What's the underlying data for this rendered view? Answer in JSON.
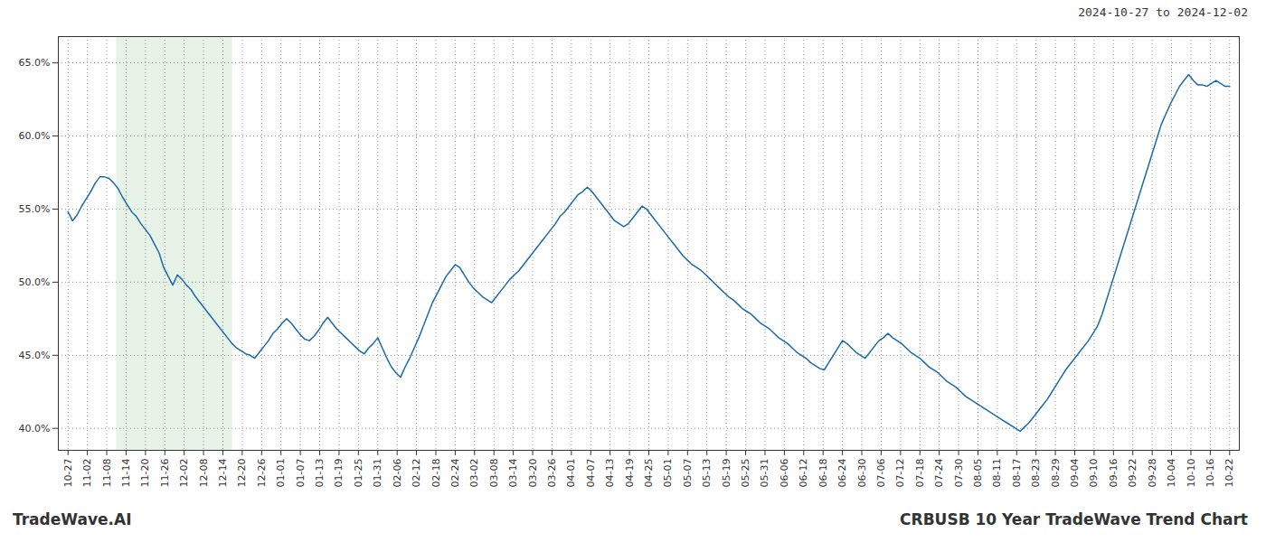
{
  "chart_data": {
    "type": "line",
    "subtitle": "2024-10-27 to 2024-12-02",
    "annotations": [
      "TradeWave.AI",
      "CRBUSB 10 Year TradeWave Trend Chart"
    ],
    "color": "#1a6aab",
    "grid": true,
    "xlim": [
      -0.5,
      60.5
    ],
    "xticks": [
      {
        "value": 0,
        "label": "10-27"
      },
      {
        "value": 1,
        "label": "11-02"
      },
      {
        "value": 2,
        "label": "11-08"
      },
      {
        "value": 3,
        "label": "11-14"
      },
      {
        "value": 4,
        "label": "11-20"
      },
      {
        "value": 5,
        "label": "11-26"
      },
      {
        "value": 6,
        "label": "12-02"
      },
      {
        "value": 7,
        "label": "12-08"
      },
      {
        "value": 8,
        "label": "12-14"
      },
      {
        "value": 9,
        "label": "12-20"
      },
      {
        "value": 10,
        "label": "12-26"
      },
      {
        "value": 11,
        "label": "01-01"
      },
      {
        "value": 12,
        "label": "01-07"
      },
      {
        "value": 13,
        "label": "01-13"
      },
      {
        "value": 14,
        "label": "01-19"
      },
      {
        "value": 15,
        "label": "01-25"
      },
      {
        "value": 16,
        "label": "01-31"
      },
      {
        "value": 17,
        "label": "02-06"
      },
      {
        "value": 18,
        "label": "02-12"
      },
      {
        "value": 19,
        "label": "02-18"
      },
      {
        "value": 20,
        "label": "02-24"
      },
      {
        "value": 21,
        "label": "03-02"
      },
      {
        "value": 22,
        "label": "03-08"
      },
      {
        "value": 23,
        "label": "03-14"
      },
      {
        "value": 24,
        "label": "03-20"
      },
      {
        "value": 25,
        "label": "03-26"
      },
      {
        "value": 26,
        "label": "04-01"
      },
      {
        "value": 27,
        "label": "04-07"
      },
      {
        "value": 28,
        "label": "04-13"
      },
      {
        "value": 29,
        "label": "04-19"
      },
      {
        "value": 30,
        "label": "04-25"
      },
      {
        "value": 31,
        "label": "05-01"
      },
      {
        "value": 32,
        "label": "05-07"
      },
      {
        "value": 33,
        "label": "05-13"
      },
      {
        "value": 34,
        "label": "05-19"
      },
      {
        "value": 35,
        "label": "05-25"
      },
      {
        "value": 36,
        "label": "05-31"
      },
      {
        "value": 37,
        "label": "06-06"
      },
      {
        "value": 38,
        "label": "06-12"
      },
      {
        "value": 39,
        "label": "06-18"
      },
      {
        "value": 40,
        "label": "06-24"
      },
      {
        "value": 41,
        "label": "06-30"
      },
      {
        "value": 42,
        "label": "07-06"
      },
      {
        "value": 43,
        "label": "07-12"
      },
      {
        "value": 44,
        "label": "07-18"
      },
      {
        "value": 45,
        "label": "07-24"
      },
      {
        "value": 46,
        "label": "07-30"
      },
      {
        "value": 47,
        "label": "08-05"
      },
      {
        "value": 48,
        "label": "08-11"
      },
      {
        "value": 49,
        "label": "08-17"
      },
      {
        "value": 50,
        "label": "08-23"
      },
      {
        "value": 51,
        "label": "08-29"
      },
      {
        "value": 52,
        "label": "09-04"
      },
      {
        "value": 53,
        "label": "09-10"
      },
      {
        "value": 54,
        "label": "09-16"
      },
      {
        "value": 55,
        "label": "09-22"
      },
      {
        "value": 56,
        "label": "09-28"
      },
      {
        "value": 57,
        "label": "10-04"
      },
      {
        "value": 58,
        "label": "10-10"
      },
      {
        "value": 59,
        "label": "10-16"
      },
      {
        "value": 60,
        "label": "10-22"
      }
    ],
    "ylim": [
      0.385,
      0.668
    ],
    "yticks": [
      {
        "value": 0.4,
        "label": "40.0%"
      },
      {
        "value": 0.45,
        "label": "45.0%"
      },
      {
        "value": 0.5,
        "label": "50.0%"
      },
      {
        "value": 0.55,
        "label": "55.0%"
      },
      {
        "value": 0.6,
        "label": "60.0%"
      },
      {
        "value": 0.65,
        "label": "65.0%"
      }
    ],
    "shade": {
      "x": [
        2.5,
        8.5
      ],
      "color": "#d6ead6"
    },
    "values": [
      0.548,
      0.542,
      0.546,
      0.552,
      0.557,
      0.562,
      0.568,
      0.572,
      0.572,
      0.571,
      0.568,
      0.564,
      0.558,
      0.553,
      0.548,
      0.545,
      0.54,
      0.536,
      0.532,
      0.526,
      0.52,
      0.51,
      0.504,
      0.498,
      0.505,
      0.502,
      0.498,
      0.495,
      0.49,
      0.486,
      0.482,
      0.478,
      0.474,
      0.47,
      0.466,
      0.462,
      0.458,
      0.455,
      0.453,
      0.451,
      0.45,
      0.448,
      0.452,
      0.456,
      0.46,
      0.465,
      0.468,
      0.472,
      0.475,
      0.472,
      0.468,
      0.464,
      0.461,
      0.46,
      0.463,
      0.467,
      0.472,
      0.476,
      0.472,
      0.468,
      0.465,
      0.462,
      0.459,
      0.456,
      0.453,
      0.451,
      0.455,
      0.458,
      0.462,
      0.455,
      0.448,
      0.442,
      0.438,
      0.435,
      0.442,
      0.448,
      0.455,
      0.462,
      0.47,
      0.478,
      0.486,
      0.492,
      0.498,
      0.504,
      0.508,
      0.512,
      0.51,
      0.505,
      0.5,
      0.496,
      0.493,
      0.49,
      0.488,
      0.486,
      0.49,
      0.494,
      0.498,
      0.502,
      0.505,
      0.508,
      0.512,
      0.516,
      0.52,
      0.524,
      0.528,
      0.532,
      0.536,
      0.54,
      0.545,
      0.548,
      0.552,
      0.556,
      0.56,
      0.562,
      0.565,
      0.562,
      0.558,
      0.554,
      0.55,
      0.546,
      0.542,
      0.54,
      0.538,
      0.54,
      0.544,
      0.548,
      0.552,
      0.55,
      0.546,
      0.542,
      0.538,
      0.534,
      0.53,
      0.526,
      0.522,
      0.518,
      0.515,
      0.512,
      0.51,
      0.508,
      0.505,
      0.502,
      0.499,
      0.496,
      0.493,
      0.49,
      0.488,
      0.485,
      0.482,
      0.48,
      0.478,
      0.475,
      0.472,
      0.47,
      0.468,
      0.465,
      0.462,
      0.46,
      0.458,
      0.455,
      0.452,
      0.45,
      0.448,
      0.445,
      0.443,
      0.441,
      0.44,
      0.445,
      0.45,
      0.455,
      0.46,
      0.458,
      0.455,
      0.452,
      0.45,
      0.448,
      0.452,
      0.456,
      0.46,
      0.462,
      0.465,
      0.462,
      0.46,
      0.458,
      0.455,
      0.452,
      0.45,
      0.448,
      0.445,
      0.442,
      0.44,
      0.438,
      0.435,
      0.432,
      0.43,
      0.428,
      0.425,
      0.422,
      0.42,
      0.418,
      0.416,
      0.414,
      0.412,
      0.41,
      0.408,
      0.406,
      0.404,
      0.402,
      0.4,
      0.398,
      0.401,
      0.404,
      0.408,
      0.412,
      0.416,
      0.42,
      0.425,
      0.43,
      0.435,
      0.44,
      0.444,
      0.448,
      0.452,
      0.456,
      0.46,
      0.465,
      0.47,
      0.478,
      0.488,
      0.498,
      0.508,
      0.518,
      0.528,
      0.538,
      0.548,
      0.558,
      0.568,
      0.578,
      0.588,
      0.598,
      0.608,
      0.615,
      0.622,
      0.628,
      0.634,
      0.638,
      0.642,
      0.638,
      0.635,
      0.635,
      0.634,
      0.636,
      0.638,
      0.636,
      0.634,
      0.634
    ]
  }
}
